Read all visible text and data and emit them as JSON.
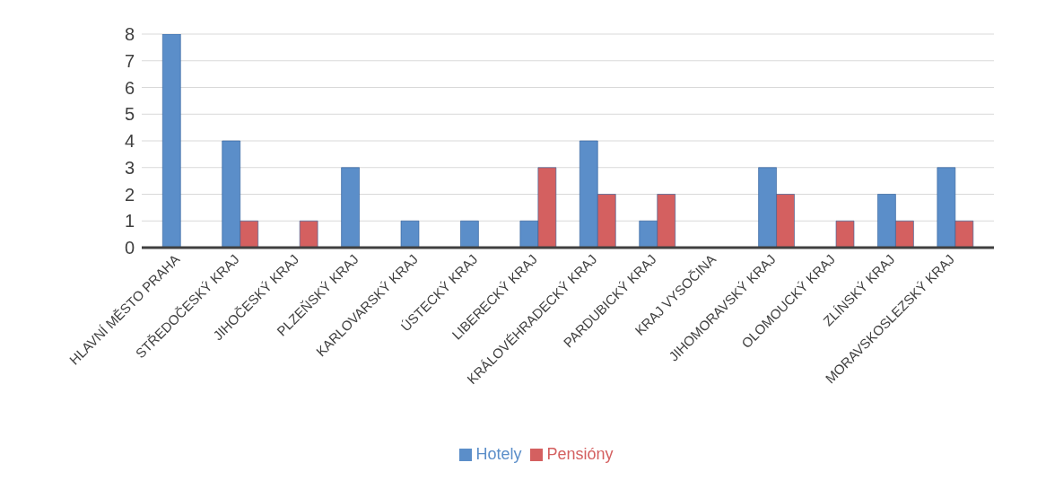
{
  "chart_data": {
    "type": "bar",
    "categories": [
      "HLAVNÍ MĚSTO PRAHA",
      "STŘEDOČESKÝ KRAJ",
      "JIHOČESKÝ KRAJ",
      "PLZEŇSKÝ KRAJ",
      "KARLOVARSKÝ KRAJ",
      "ÚSTECKÝ KRAJ",
      "LIBERECKÝ KRAJ",
      "KRÁLOVÉHRADECKÝ KRAJ",
      "PARDUBICKÝ KRAJ",
      "KRAJ VYSOČINA",
      "JIHOMORAVSKÝ KRAJ",
      "OLOMOUCKÝ KRAJ",
      "ZLÍNSKÝ KRAJ",
      "MORAVSKOSLEZSKÝ KRAJ"
    ],
    "series": [
      {
        "name": "Hotely",
        "color": "#5b8ec9",
        "values": [
          8,
          4,
          0,
          3,
          1,
          1,
          1,
          4,
          1,
          0,
          3,
          0,
          2,
          3
        ]
      },
      {
        "name": "Pensióny",
        "color": "#d46060",
        "values": [
          0,
          1,
          1,
          0,
          0,
          0,
          3,
          2,
          2,
          0,
          2,
          1,
          1,
          1
        ]
      }
    ],
    "ylim": [
      0,
      8
    ],
    "yticks": [
      0,
      1,
      2,
      3,
      4,
      5,
      6,
      7,
      8
    ],
    "grid": "y",
    "legend": "bottom"
  }
}
